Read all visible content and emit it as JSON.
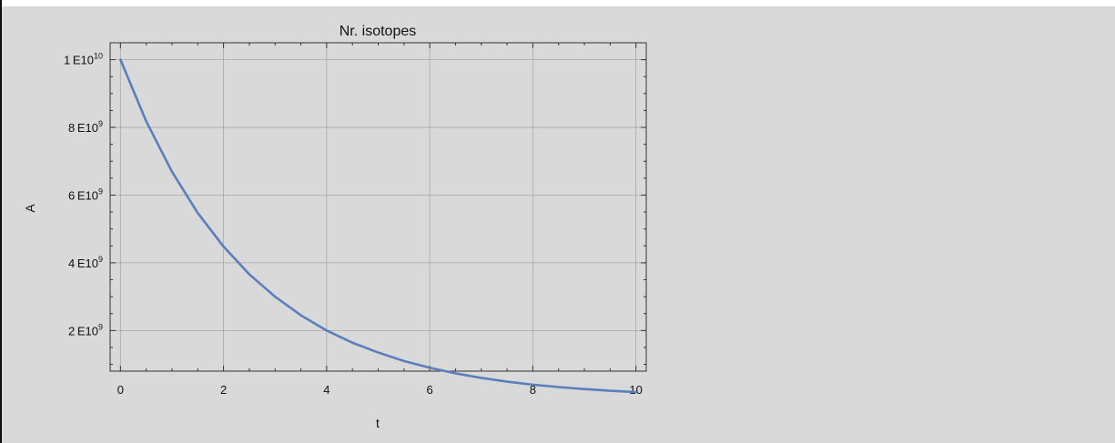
{
  "chart_data": {
    "type": "line",
    "title": "Nr. isotopes",
    "xlabel": "t",
    "ylabel": "A",
    "xlim": [
      -0.2,
      10.2
    ],
    "ylim": [
      800000000,
      10500000000
    ],
    "grid": true,
    "x_ticks": [
      {
        "value": 0,
        "label": "0"
      },
      {
        "value": 2,
        "label": "2"
      },
      {
        "value": 4,
        "label": "4"
      },
      {
        "value": 6,
        "label": "6"
      },
      {
        "value": 8,
        "label": "8"
      },
      {
        "value": 10,
        "label": "10"
      }
    ],
    "y_ticks": [
      {
        "value": 2000000000,
        "mantissa": "2",
        "sep": "E",
        "base": "10",
        "exp": "9"
      },
      {
        "value": 4000000000,
        "mantissa": "4",
        "sep": "E",
        "base": "10",
        "exp": "9"
      },
      {
        "value": 6000000000,
        "mantissa": "6",
        "sep": "E",
        "base": "10",
        "exp": "9"
      },
      {
        "value": 8000000000,
        "mantissa": "8",
        "sep": "E",
        "base": "10",
        "exp": "9"
      },
      {
        "value": 10000000000,
        "mantissa": "1",
        "sep": "E",
        "base": "10",
        "exp": "10"
      }
    ],
    "series": [
      {
        "color": "#5b7fbd",
        "x": [
          0,
          0.5,
          1,
          1.5,
          2,
          2.5,
          3,
          3.5,
          4,
          4.5,
          5,
          5.5,
          6,
          6.5,
          7,
          7.5,
          8,
          8.5,
          9,
          9.5,
          10
        ],
        "y": [
          10000000000,
          8180000000,
          6690000000,
          5470000000,
          4480000000,
          3660000000,
          3000000000,
          2450000000,
          2000000000,
          1640000000,
          1350000000,
          1100000000,
          900000000,
          735000000,
          600000000,
          490000000,
          400000000,
          330000000,
          270000000,
          220000000,
          180000000
        ]
      }
    ]
  }
}
